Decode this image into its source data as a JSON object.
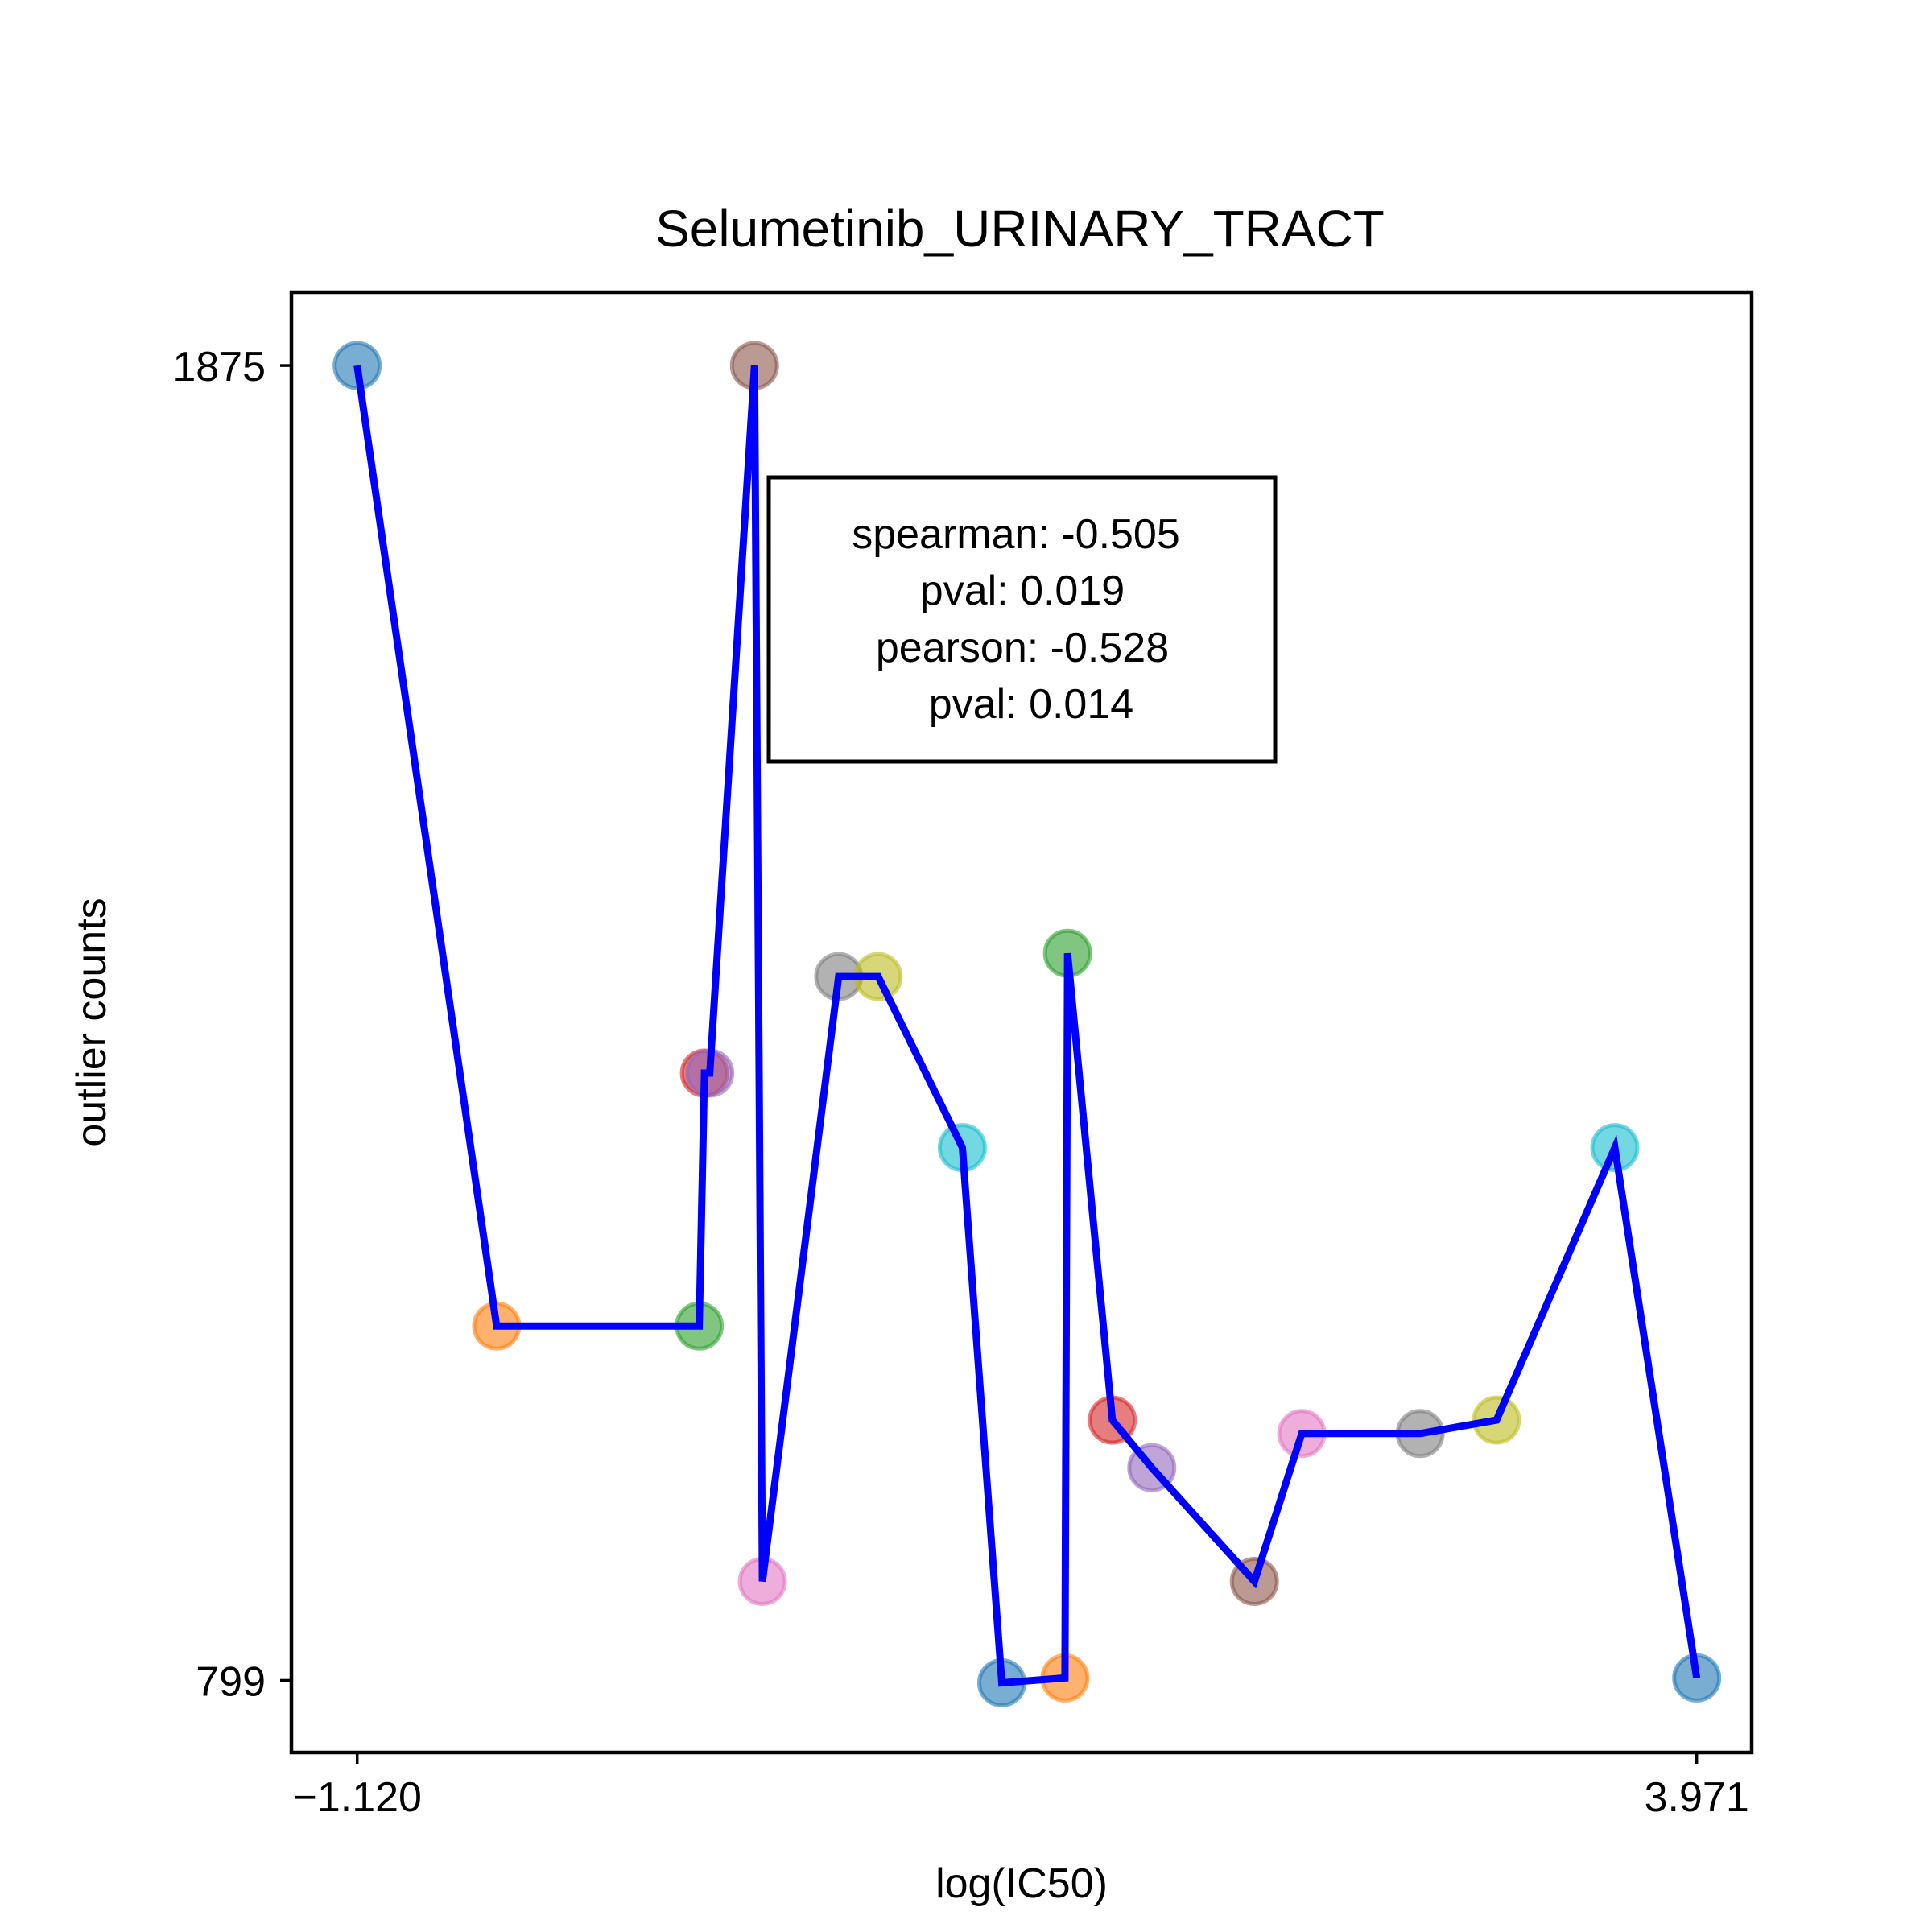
{
  "chart_data": {
    "type": "line",
    "title": "Selumetinib_URINARY_TRACT",
    "xlabel": "log(IC50)",
    "ylabel": "outlier counts",
    "xlim": [
      -1.37,
      4.18
    ],
    "ylim": [
      740,
      1935
    ],
    "xticks": [
      {
        "value": -1.12,
        "label": "−1.120"
      },
      {
        "value": 3.971,
        "label": "3.971"
      }
    ],
    "yticks": [
      {
        "value": 1875,
        "label": "1875"
      },
      {
        "value": 799,
        "label": "799"
      }
    ],
    "grid": false,
    "line_color": "#0000ff",
    "marker_colors": [
      "#1f77b4",
      "#ff7f0e",
      "#2ca02c",
      "#d62728",
      "#9467bd",
      "#8c564b",
      "#e377c2",
      "#7f7f7f",
      "#bcbd22",
      "#17becf"
    ],
    "points": [
      {
        "x": -1.12,
        "y": 1875
      },
      {
        "x": -0.59,
        "y": 1089
      },
      {
        "x": 0.18,
        "y": 1089
      },
      {
        "x": 0.2,
        "y": 1296
      },
      {
        "x": 0.22,
        "y": 1296
      },
      {
        "x": 0.39,
        "y": 1875
      },
      {
        "x": 0.42,
        "y": 880
      },
      {
        "x": 0.71,
        "y": 1375
      },
      {
        "x": 0.86,
        "y": 1375
      },
      {
        "x": 1.18,
        "y": 1235
      },
      {
        "x": 1.33,
        "y": 797
      },
      {
        "x": 1.57,
        "y": 801
      },
      {
        "x": 1.58,
        "y": 1394
      },
      {
        "x": 1.75,
        "y": 1012
      },
      {
        "x": 1.9,
        "y": 973
      },
      {
        "x": 2.29,
        "y": 880
      },
      {
        "x": 2.47,
        "y": 1001
      },
      {
        "x": 2.92,
        "y": 1001
      },
      {
        "x": 3.21,
        "y": 1012
      },
      {
        "x": 3.66,
        "y": 1235
      },
      {
        "x": 3.971,
        "y": 801
      }
    ],
    "stats_box": {
      "lines": [
        "spearman: -0.505",
        "pval: 0.019",
        "pearson: -0.528",
        "pval: 0.014"
      ]
    }
  }
}
